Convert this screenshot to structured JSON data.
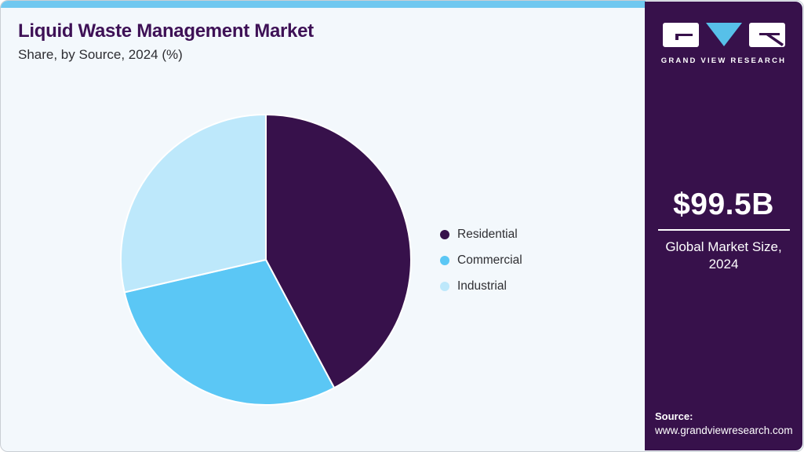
{
  "header": {
    "title": "Liquid Waste Management Market",
    "subtitle": "Share, by Source, 2024 (%)"
  },
  "chart_data": {
    "type": "pie",
    "title": "Liquid Waste Management Market Share, by Source, 2024 (%)",
    "categories": [
      "Residential",
      "Commercial",
      "Industrial"
    ],
    "values": [
      42.2,
      29.2,
      28.6
    ],
    "unit": "%",
    "colors": [
      "#37114b",
      "#5bc7f5",
      "#bde8fb"
    ],
    "start_angle_deg": 0,
    "direction": "clockwise",
    "legend_position": "right",
    "data_labels": false
  },
  "sidebar": {
    "logo_text": "GRAND VIEW RESEARCH",
    "market_size_value": "$99.5B",
    "market_size_label_1": "Global Market Size,",
    "market_size_label_2": "2024",
    "source_label": "Source:",
    "source_url": "www.grandviewresearch.com"
  },
  "theme": {
    "accent_bar_color": "#70c8f0",
    "sidebar_color": "#37114b",
    "title_color": "#3e1156",
    "canvas_bg": "#f3f8fc",
    "logo_triangle_color": "#57c0e9"
  }
}
